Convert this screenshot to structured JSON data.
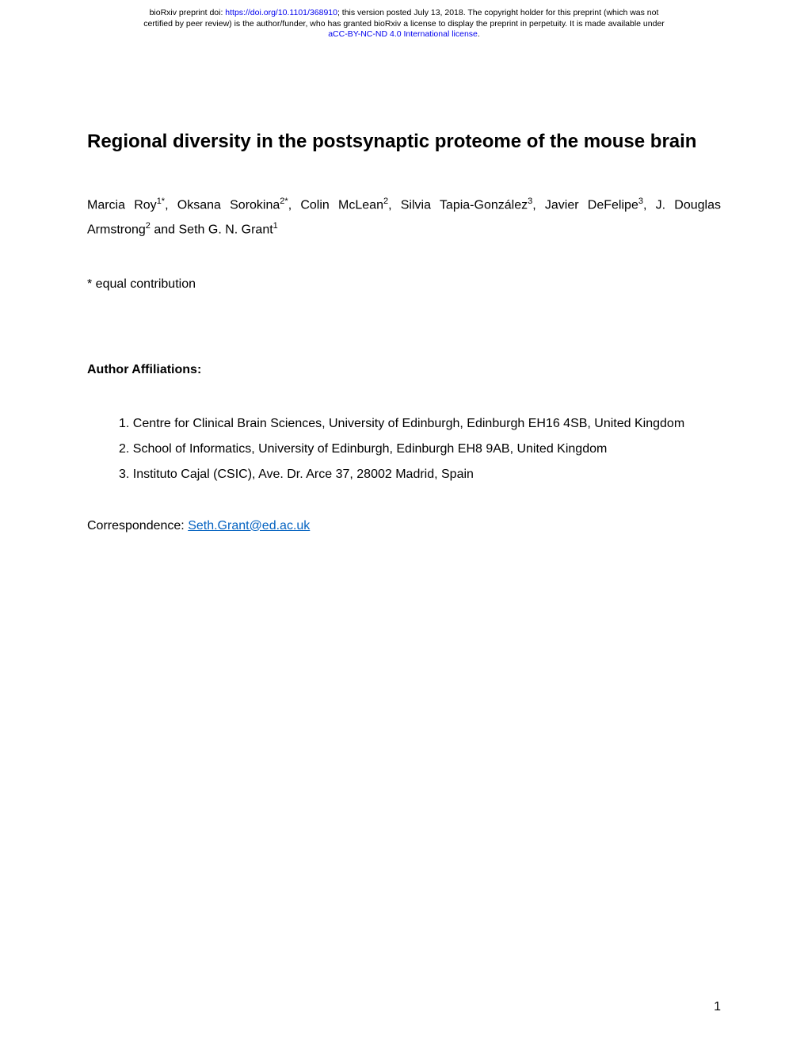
{
  "preprint_header": {
    "line1_prefix": "bioRxiv preprint doi: ",
    "doi_url": "https://doi.org/10.1101/368910",
    "line1_suffix": "; this version posted July 13, 2018. The copyright holder for this preprint (which was not",
    "line2": "certified by peer review) is the author/funder, who has granted bioRxiv a license to display the preprint in perpetuity. It is made available under",
    "license_link": "aCC-BY-NC-ND 4.0 International license",
    "license_suffix": "."
  },
  "title": "Regional diversity in the postsynaptic proteome of the mouse brain",
  "authors_html": "Marcia Roy<sup>1*</sup>, Oksana Sorokina<sup>2*</sup>, Colin McLean<sup>2</sup>, Silvia Tapia-González<sup>3</sup>, Javier DeFelipe<sup>3</sup>, J. Douglas Armstrong<sup>2</sup> and Seth G. N. Grant<sup>1</sup>",
  "equal_contribution": "* equal contribution",
  "affiliations_heading": "Author Affiliations:",
  "affiliations": [
    "1.  Centre for Clinical Brain Sciences, University of Edinburgh, Edinburgh EH16 4SB, United Kingdom",
    "2.  School of Informatics, University of Edinburgh, Edinburgh EH8 9AB, United Kingdom",
    "3.  Instituto Cajal (CSIC), Ave. Dr. Arce 37, 28002 Madrid, Spain"
  ],
  "correspondence_label": "Correspondence: ",
  "correspondence_email": "Seth.Grant@ed.ac.uk",
  "page_number": "1",
  "colors": {
    "link_blue": "#0000ee",
    "email_blue": "#0563c1",
    "text": "#000000",
    "background": "#ffffff"
  },
  "typography": {
    "header_fontsize": 10.5,
    "title_fontsize": 24,
    "body_fontsize": 16
  }
}
